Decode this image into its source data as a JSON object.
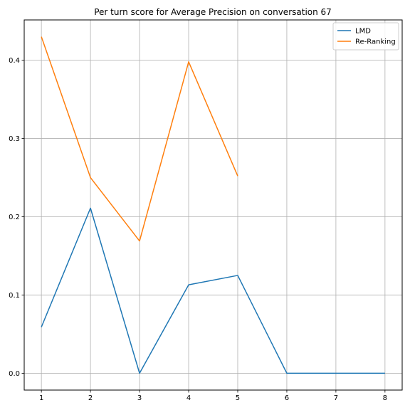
{
  "chart_data": {
    "type": "line",
    "title": "Per turn score for Average Precision on conversation 67",
    "xlabel": "",
    "ylabel": "",
    "x_ticks": [
      1,
      2,
      3,
      4,
      5,
      6,
      7,
      8
    ],
    "y_ticks": [
      0.0,
      0.1,
      0.2,
      0.3,
      0.4
    ],
    "y_tick_labels": [
      "0.0",
      "0.1",
      "0.2",
      "0.3",
      "0.4"
    ],
    "xlim": [
      0.65,
      8.35
    ],
    "ylim": [
      -0.0215,
      0.4515
    ],
    "grid": true,
    "legend_position": "top-right",
    "series": [
      {
        "name": "LMD",
        "color": "#1f77b4",
        "x": [
          1,
          2,
          3,
          4,
          5,
          6,
          7,
          8
        ],
        "values": [
          0.059,
          0.211,
          0.0,
          0.113,
          0.125,
          0.0,
          0.0,
          0.0
        ]
      },
      {
        "name": "Re-Ranking",
        "color": "#ff7f0e",
        "x": [
          1,
          2,
          3,
          4,
          5
        ],
        "values": [
          0.43,
          0.25,
          0.169,
          0.398,
          0.252
        ]
      }
    ]
  }
}
